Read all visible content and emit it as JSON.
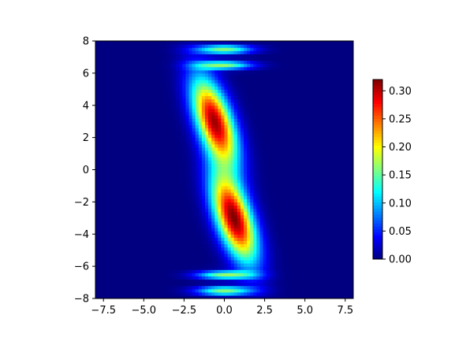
{
  "chart_data": {
    "type": "heatmap",
    "title": "",
    "xlabel": "",
    "ylabel": "",
    "xlim": [
      -8,
      8
    ],
    "ylim": [
      -8,
      8
    ],
    "xticks": [
      -7.5,
      -5.0,
      -2.5,
      0.0,
      2.5,
      5.0,
      7.5
    ],
    "xtick_labels": [
      "−7.5",
      "−5.0",
      "−2.5",
      "0.0",
      "2.5",
      "5.0",
      "7.5"
    ],
    "yticks": [
      -8,
      -6,
      -4,
      -2,
      0,
      2,
      4,
      6,
      8
    ],
    "ytick_labels": [
      "−8",
      "−6",
      "−4",
      "−2",
      "0",
      "2",
      "4",
      "6",
      "8"
    ],
    "colormap": "jet",
    "colorbar": {
      "range": [
        0,
        0.32
      ],
      "ticks": [
        0.0,
        0.05,
        0.1,
        0.15,
        0.2,
        0.25,
        0.3
      ],
      "tick_labels": [
        "0.00",
        "0.05",
        "0.10",
        "0.15",
        "0.20",
        "0.25",
        "0.30"
      ]
    },
    "grid": false,
    "features": [
      {
        "name": "upper lobe",
        "center": [
          -0.6,
          3.0
        ],
        "peak": 0.31
      },
      {
        "name": "lower lobe",
        "center": [
          0.6,
          -3.0
        ],
        "peak": 0.32
      }
    ],
    "fringes_near": [
      -7.5,
      -7.0,
      -6.5,
      6.5,
      7.0,
      7.5
    ]
  },
  "colors": {
    "background": "#ffffff",
    "axes": "#000000",
    "cmap_low": "#00007f",
    "cmap_high": "#7f0000"
  }
}
